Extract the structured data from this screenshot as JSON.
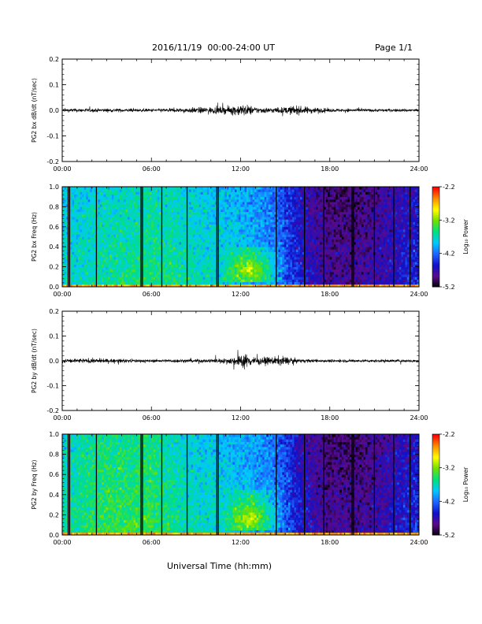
{
  "header": {
    "title": "2016/11/19  00:00-24:00 UT",
    "page_label": "Page 1/1"
  },
  "xaxis": {
    "title": "Universal Time (hh:mm)",
    "ticks": [
      "00:00",
      "06:00",
      "12:00",
      "18:00",
      "24:00"
    ],
    "range_hours": [
      0,
      24
    ]
  },
  "colorbar": {
    "title": "Log₁₀ Power",
    "ticks": [
      "-2.2",
      "-3.2",
      "-4.2",
      "-5.2"
    ],
    "range": [
      -5.2,
      -2.2
    ],
    "colormap": [
      "#000000",
      "#5b0a8c",
      "#1010c8",
      "#1e64ff",
      "#00c8ff",
      "#00e080",
      "#70e000",
      "#ffff00",
      "#ff8c00",
      "#ff0000"
    ]
  },
  "chart_data": [
    {
      "type": "line",
      "ylabel": "PG2 bx dB/dt (nT/sec)",
      "ylim": [
        -0.2,
        0.2
      ],
      "yticks": [
        "0.2",
        "0.1",
        "0.0",
        "-0.1",
        "-0.2"
      ],
      "x_hours": [
        0,
        3,
        6,
        8,
        9,
        10,
        11,
        11.5,
        12,
        12.5,
        13,
        14,
        15,
        15.5,
        16,
        17,
        18,
        20,
        22,
        24
      ],
      "amplitude": [
        0.012,
        0.012,
        0.01,
        0.014,
        0.02,
        0.022,
        0.024,
        0.032,
        0.04,
        0.036,
        0.022,
        0.018,
        0.022,
        0.03,
        0.026,
        0.02,
        0.012,
        0.01,
        0.01,
        0.01
      ]
    },
    {
      "type": "heatmap",
      "ylabel": "PG2 bx Freq (Hz)",
      "ylim": [
        0,
        1
      ],
      "yticks": [
        "1.0",
        "0.8",
        "0.6",
        "0.4",
        "0.2",
        "0.0"
      ],
      "x_hours": [
        0,
        3,
        6,
        8,
        10,
        12,
        13,
        14,
        15,
        16,
        18,
        20,
        22,
        24
      ],
      "background_log_power": [
        -3.7,
        -3.6,
        -3.5,
        -3.6,
        -3.7,
        -3.8,
        -3.9,
        -4.0,
        -4.2,
        -4.5,
        -4.8,
        -4.8,
        -4.6,
        -4.4
      ],
      "enhancement_hours": [
        10.5,
        15
      ],
      "enhancement_freq_hz": [
        0.05,
        0.4
      ],
      "gap_lines_hours": [
        0.4,
        0.5,
        2.3,
        5.3,
        5.4,
        6.7,
        8.4,
        10.4,
        10.5,
        14.4,
        16.3,
        17.6,
        19.5,
        19.6,
        21.0,
        22.3,
        23.4
      ]
    },
    {
      "type": "line",
      "ylabel": "PG2 by dB/dt (nT/sec)",
      "ylim": [
        -0.2,
        0.2
      ],
      "yticks": [
        "0.2",
        "0.1",
        "0.0",
        "-0.1",
        "-0.2"
      ],
      "x_hours": [
        0,
        2,
        4,
        6,
        8,
        10,
        11,
        11.8,
        12.2,
        12.6,
        13,
        14,
        14.8,
        15.5,
        16,
        18,
        20,
        22,
        24
      ],
      "amplitude": [
        0.016,
        0.016,
        0.012,
        0.01,
        0.012,
        0.014,
        0.018,
        0.035,
        0.055,
        0.04,
        0.026,
        0.026,
        0.034,
        0.02,
        0.012,
        0.01,
        0.01,
        0.01,
        0.01
      ]
    },
    {
      "type": "heatmap",
      "ylabel": "PG2 by Freq (Hz)",
      "ylim": [
        0,
        1
      ],
      "yticks": [
        "1.0",
        "0.8",
        "0.6",
        "0.4",
        "0.2",
        "0.0"
      ],
      "x_hours": [
        0,
        3,
        6,
        8,
        10,
        12,
        13,
        14,
        15,
        16,
        18,
        20,
        22,
        24
      ],
      "background_log_power": [
        -3.6,
        -3.4,
        -3.4,
        -3.6,
        -3.7,
        -3.8,
        -3.9,
        -4.0,
        -4.2,
        -4.5,
        -4.8,
        -4.8,
        -4.6,
        -4.4
      ],
      "enhancement_hours": [
        10.5,
        15
      ],
      "enhancement_freq_hz": [
        0.05,
        0.45
      ],
      "gap_lines_hours": [
        0.4,
        0.5,
        2.3,
        5.3,
        5.4,
        6.7,
        8.4,
        10.4,
        10.5,
        14.4,
        16.3,
        17.6,
        19.5,
        19.6,
        21.0,
        22.3,
        23.4
      ]
    }
  ]
}
